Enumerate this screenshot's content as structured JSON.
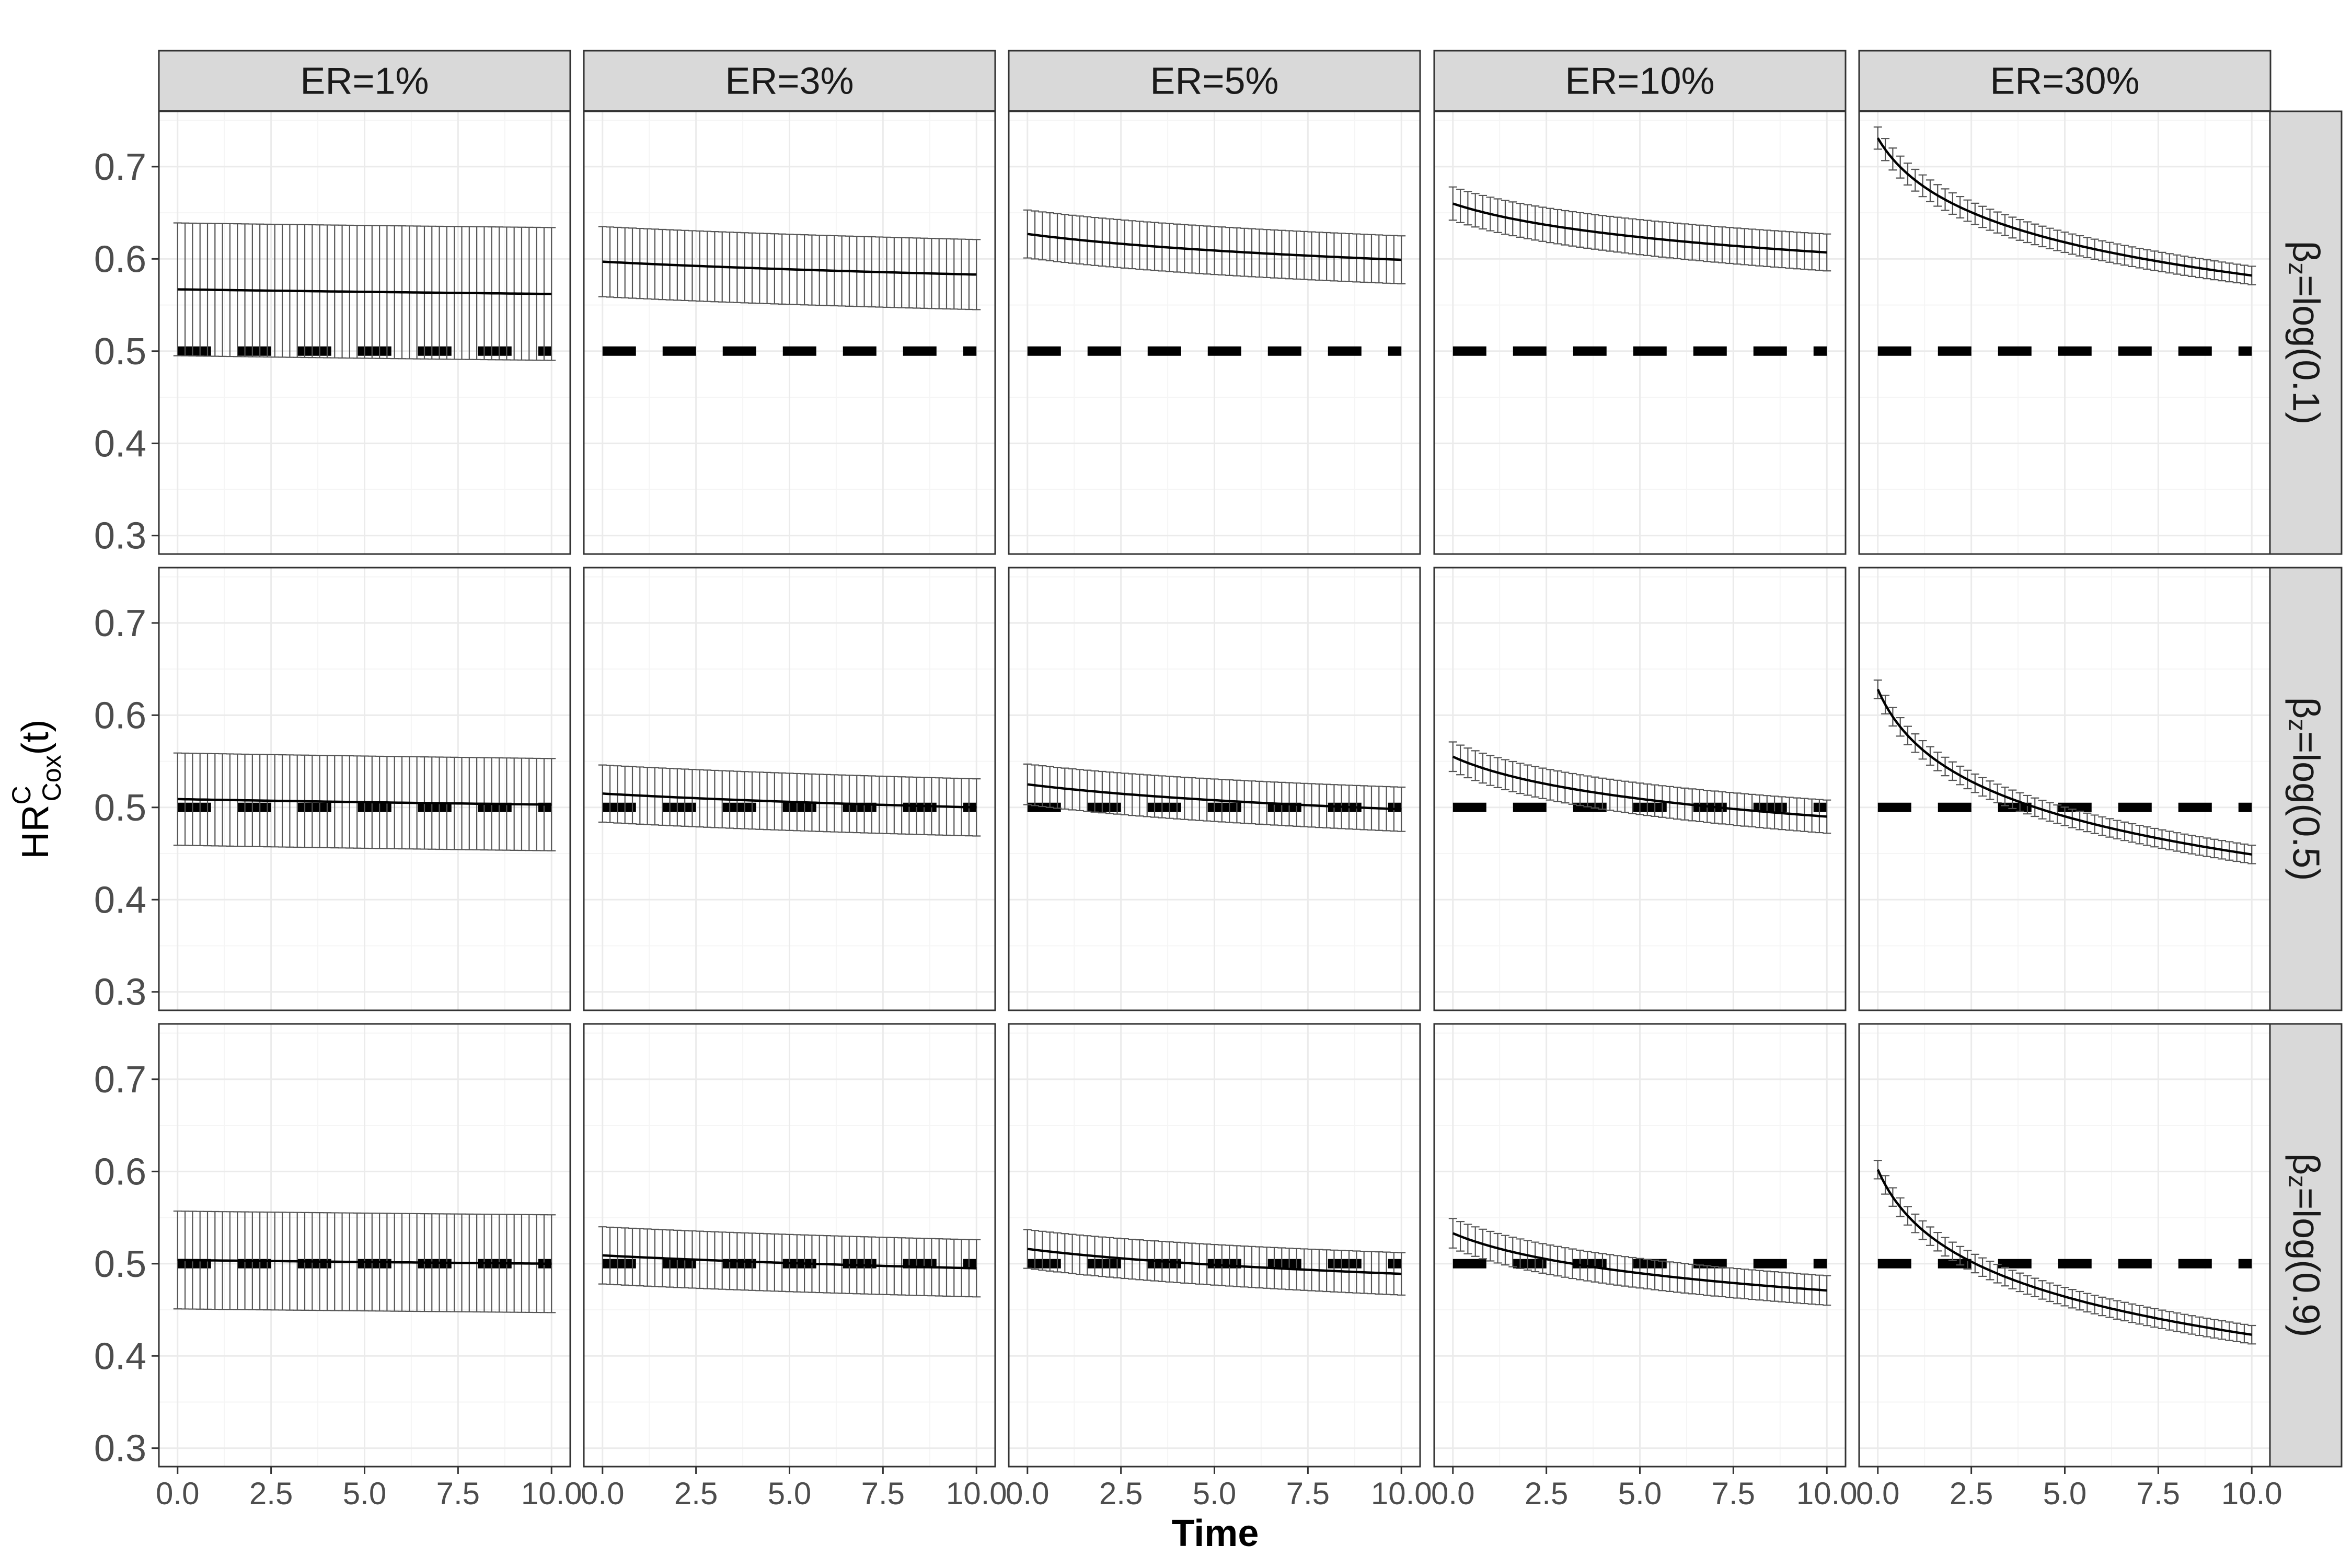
{
  "chart_data": {
    "type": "line",
    "column_strips": [
      "ER=1%",
      "ER=3%",
      "ER=5%",
      "ER=10%",
      "ER=30%"
    ],
    "row_strips": [
      {
        "base": "β",
        "sub": "z",
        "rest": "=log(0.1)"
      },
      {
        "base": "β",
        "sub": "z",
        "rest": "=log(0.5)"
      },
      {
        "base": "β",
        "sub": "z",
        "rest": "=log(0.9)"
      }
    ],
    "xlabel": "Time",
    "ylabel": {
      "base": "HR",
      "sup": "C",
      "sub": "Cox",
      "rest": "(t)"
    },
    "xlim": [
      -0.5,
      10.5
    ],
    "ylim": [
      0.28,
      0.76
    ],
    "x_ticks": [
      0,
      2.5,
      5,
      7.5,
      10
    ],
    "x_tick_labels": [
      "0.0",
      "2.5",
      "5.0",
      "7.5",
      "10.0"
    ],
    "y_ticks": [
      0.3,
      0.4,
      0.5,
      0.6,
      0.7
    ],
    "y_tick_labels": [
      "0.3",
      "0.4",
      "0.5",
      "0.6",
      "0.7"
    ],
    "reference_line": 0.5,
    "grid": true,
    "panels": [
      {
        "row": 0,
        "col": 0,
        "start": 0.567,
        "end": 0.562,
        "ci_start": 0.072,
        "ci_end": 0.072
      },
      {
        "row": 0,
        "col": 1,
        "start": 0.597,
        "end": 0.583,
        "ci_start": 0.038,
        "ci_end": 0.038
      },
      {
        "row": 0,
        "col": 2,
        "start": 0.627,
        "end": 0.599,
        "ci_start": 0.026,
        "ci_end": 0.026
      },
      {
        "row": 0,
        "col": 3,
        "start": 0.66,
        "end": 0.607,
        "ci_start": 0.018,
        "ci_end": 0.02
      },
      {
        "row": 0,
        "col": 4,
        "start": 0.731,
        "end": 0.582,
        "ci_start": 0.012,
        "ci_end": 0.01
      },
      {
        "row": 1,
        "col": 0,
        "start": 0.509,
        "end": 0.503,
        "ci_start": 0.05,
        "ci_end": 0.05
      },
      {
        "row": 1,
        "col": 1,
        "start": 0.515,
        "end": 0.5,
        "ci_start": 0.031,
        "ci_end": 0.031
      },
      {
        "row": 1,
        "col": 2,
        "start": 0.525,
        "end": 0.498,
        "ci_start": 0.022,
        "ci_end": 0.024
      },
      {
        "row": 1,
        "col": 3,
        "start": 0.555,
        "end": 0.49,
        "ci_start": 0.016,
        "ci_end": 0.018
      },
      {
        "row": 1,
        "col": 4,
        "start": 0.628,
        "end": 0.449,
        "ci_start": 0.01,
        "ci_end": 0.01
      },
      {
        "row": 2,
        "col": 0,
        "start": 0.504,
        "end": 0.5,
        "ci_start": 0.053,
        "ci_end": 0.053
      },
      {
        "row": 2,
        "col": 1,
        "start": 0.509,
        "end": 0.495,
        "ci_start": 0.031,
        "ci_end": 0.031
      },
      {
        "row": 2,
        "col": 2,
        "start": 0.516,
        "end": 0.489,
        "ci_start": 0.021,
        "ci_end": 0.023
      },
      {
        "row": 2,
        "col": 3,
        "start": 0.533,
        "end": 0.471,
        "ci_start": 0.016,
        "ci_end": 0.016
      },
      {
        "row": 2,
        "col": 4,
        "start": 0.602,
        "end": 0.423,
        "ci_start": 0.01,
        "ci_end": 0.01
      }
    ],
    "colors": {
      "strip_fill": "#d9d9d9",
      "panel_border": "#333333",
      "grid_major": "#ebebeb",
      "grid_minor": "#f5f5f5",
      "line": "#000000",
      "errorbar": "#555555",
      "reference": "#000000"
    }
  }
}
